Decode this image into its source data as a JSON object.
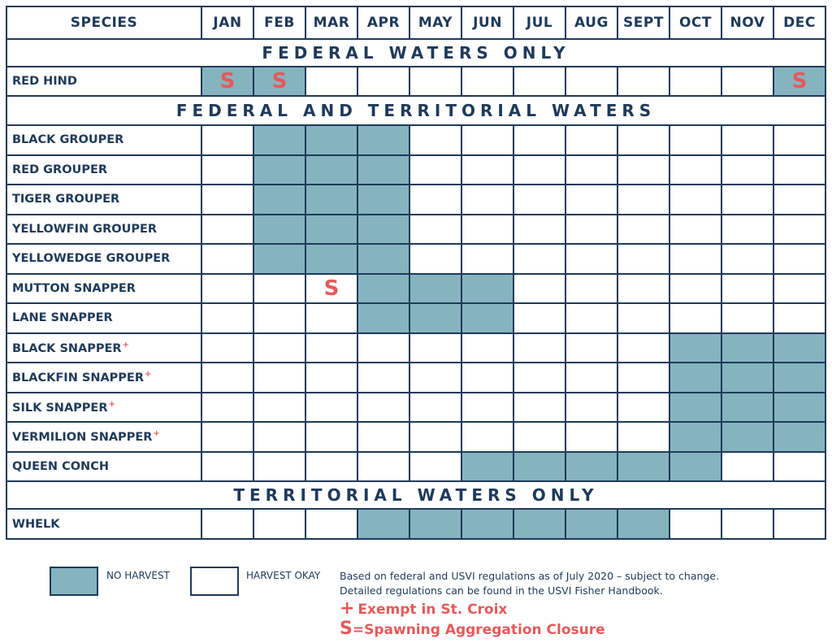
{
  "header": {
    "species_label": "SPECIES",
    "months": [
      "JAN",
      "FEB",
      "MAR",
      "APR",
      "MAY",
      "JUN",
      "JUL",
      "AUG",
      "SEPT",
      "OCT",
      "NOV",
      "DEC"
    ]
  },
  "sections": [
    {
      "title": "FEDERAL WATERS ONLY",
      "rows": [
        {
          "name": "RED HIND",
          "exempt_mark": "",
          "closed": [
            1,
            1,
            0,
            0,
            0,
            0,
            0,
            0,
            0,
            0,
            0,
            1
          ],
          "spawning": [
            1,
            1,
            0,
            0,
            0,
            0,
            0,
            0,
            0,
            0,
            0,
            1
          ]
        }
      ]
    },
    {
      "title": "FEDERAL AND TERRITORIAL WATERS",
      "rows": [
        {
          "name": "BLACK GROUPER",
          "exempt_mark": "",
          "closed": [
            0,
            1,
            1,
            1,
            0,
            0,
            0,
            0,
            0,
            0,
            0,
            0
          ],
          "spawning": [
            0,
            0,
            0,
            0,
            0,
            0,
            0,
            0,
            0,
            0,
            0,
            0
          ]
        },
        {
          "name": "RED GROUPER",
          "exempt_mark": "",
          "closed": [
            0,
            1,
            1,
            1,
            0,
            0,
            0,
            0,
            0,
            0,
            0,
            0
          ],
          "spawning": [
            0,
            0,
            0,
            0,
            0,
            0,
            0,
            0,
            0,
            0,
            0,
            0
          ]
        },
        {
          "name": "TIGER GROUPER",
          "exempt_mark": "",
          "closed": [
            0,
            1,
            1,
            1,
            0,
            0,
            0,
            0,
            0,
            0,
            0,
            0
          ],
          "spawning": [
            0,
            0,
            0,
            0,
            0,
            0,
            0,
            0,
            0,
            0,
            0,
            0
          ]
        },
        {
          "name": "YELLOWFIN GROUPER",
          "exempt_mark": "",
          "closed": [
            0,
            1,
            1,
            1,
            0,
            0,
            0,
            0,
            0,
            0,
            0,
            0
          ],
          "spawning": [
            0,
            0,
            0,
            0,
            0,
            0,
            0,
            0,
            0,
            0,
            0,
            0
          ]
        },
        {
          "name": "YELLOWEDGE GROUPER",
          "exempt_mark": "",
          "closed": [
            0,
            1,
            1,
            1,
            0,
            0,
            0,
            0,
            0,
            0,
            0,
            0
          ],
          "spawning": [
            0,
            0,
            0,
            0,
            0,
            0,
            0,
            0,
            0,
            0,
            0,
            0
          ]
        },
        {
          "name": "MUTTON SNAPPER",
          "exempt_mark": "",
          "closed": [
            0,
            0,
            0,
            1,
            1,
            1,
            0,
            0,
            0,
            0,
            0,
            0
          ],
          "spawning": [
            0,
            0,
            1,
            0,
            0,
            0,
            0,
            0,
            0,
            0,
            0,
            0
          ]
        },
        {
          "name": "LANE SNAPPER",
          "exempt_mark": "",
          "closed": [
            0,
            0,
            0,
            1,
            1,
            1,
            0,
            0,
            0,
            0,
            0,
            0
          ],
          "spawning": [
            0,
            0,
            0,
            0,
            0,
            0,
            0,
            0,
            0,
            0,
            0,
            0
          ]
        },
        {
          "name": "BLACK SNAPPER",
          "exempt_mark": "+",
          "closed": [
            0,
            0,
            0,
            0,
            0,
            0,
            0,
            0,
            0,
            1,
            1,
            1
          ],
          "spawning": [
            0,
            0,
            0,
            0,
            0,
            0,
            0,
            0,
            0,
            0,
            0,
            0
          ]
        },
        {
          "name": "BLACKFIN SNAPPER",
          "exempt_mark": "+",
          "closed": [
            0,
            0,
            0,
            0,
            0,
            0,
            0,
            0,
            0,
            1,
            1,
            1
          ],
          "spawning": [
            0,
            0,
            0,
            0,
            0,
            0,
            0,
            0,
            0,
            0,
            0,
            0
          ]
        },
        {
          "name": "SILK SNAPPER",
          "exempt_mark": "+",
          "closed": [
            0,
            0,
            0,
            0,
            0,
            0,
            0,
            0,
            0,
            1,
            1,
            1
          ],
          "spawning": [
            0,
            0,
            0,
            0,
            0,
            0,
            0,
            0,
            0,
            0,
            0,
            0
          ]
        },
        {
          "name": "VERMILION SNAPPER",
          "exempt_mark": "+",
          "closed": [
            0,
            0,
            0,
            0,
            0,
            0,
            0,
            0,
            0,
            1,
            1,
            1
          ],
          "spawning": [
            0,
            0,
            0,
            0,
            0,
            0,
            0,
            0,
            0,
            0,
            0,
            0
          ]
        },
        {
          "name": "QUEEN CONCH",
          "exempt_mark": "",
          "closed": [
            0,
            0,
            0,
            0,
            0,
            1,
            1,
            1,
            1,
            1,
            0,
            0
          ],
          "spawning": [
            0,
            0,
            0,
            0,
            0,
            0,
            0,
            0,
            0,
            0,
            0,
            0
          ]
        }
      ]
    },
    {
      "title": "TERRITORIAL WATERS ONLY",
      "rows": [
        {
          "name": "WHELK",
          "exempt_mark": "",
          "closed": [
            0,
            0,
            0,
            1,
            1,
            1,
            1,
            1,
            1,
            0,
            0,
            0
          ],
          "spawning": [
            0,
            0,
            0,
            0,
            0,
            0,
            0,
            0,
            0,
            0,
            0,
            0
          ]
        }
      ]
    }
  ],
  "spawning_mark": "S",
  "legend": {
    "no_harvest_label": "NO HARVEST",
    "harvest_okay_label": "HARVEST OKAY",
    "note_line1": "Based on federal and USVI regulations as of July 2020 – subject to change.",
    "note_line2": "Detailed regulations can be found in the USVI Fisher Handbook.",
    "exempt_symbol": "+",
    "exempt_text": "Exempt in St. Croix",
    "spawning_symbol": "S",
    "spawning_text": "=Spawning Aggregation Closure"
  },
  "colors": {
    "no_harvest": "#85b4bf",
    "harvest_okay": "#ffffff",
    "border": "#1f3a5a",
    "accent": "#e35a5a"
  }
}
